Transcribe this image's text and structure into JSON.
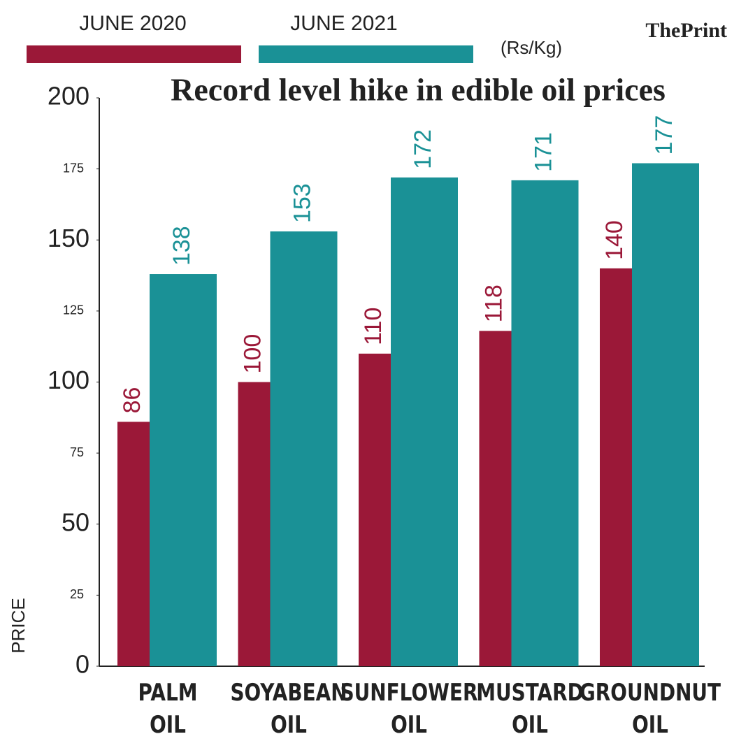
{
  "chart_data": {
    "type": "bar",
    "title": "Record level hike in edible oil prices",
    "unit_label": "(Rs/Kg)",
    "logo": "ThePrint",
    "ylabel": "PRICE",
    "categories": [
      "PALM OIL",
      "SOYABEAN OIL",
      "SUNFLOWER OIL",
      "MUSTARD OIL",
      "GROUNDNUT OIL"
    ],
    "series": [
      {
        "name": "JUNE 2020",
        "color": "#9b1838",
        "values": [
          86,
          100,
          110,
          118,
          140
        ]
      },
      {
        "name": "JUNE 2021",
        "color": "#1a9196",
        "values": [
          138,
          153,
          172,
          171,
          177
        ]
      }
    ],
    "ylim": [
      0,
      200
    ],
    "yticks": [
      0,
      25,
      50,
      75,
      100,
      125,
      150,
      175,
      200
    ]
  }
}
